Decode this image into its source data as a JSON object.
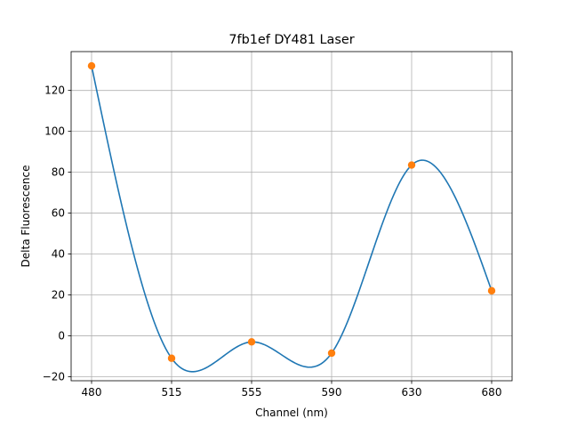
{
  "chart_data": {
    "type": "line",
    "title": "7fb1ef DY481 Laser",
    "xlabel": "Channel (nm)",
    "ylabel": "Delta Fluorescence",
    "categories": [
      "480",
      "515",
      "555",
      "590",
      "630",
      "680"
    ],
    "values": [
      132,
      -11,
      -3,
      -8.5,
      83.5,
      22
    ],
    "yticks": [
      -20,
      0,
      20,
      40,
      60,
      80,
      100,
      120
    ],
    "ylim": [
      -22,
      139
    ],
    "grid": true,
    "legend": "none",
    "smooth_curve": true,
    "colors": {
      "line": "#1f77b4",
      "markers": "#ff7f0e",
      "grid": "#b0b0b0"
    }
  }
}
